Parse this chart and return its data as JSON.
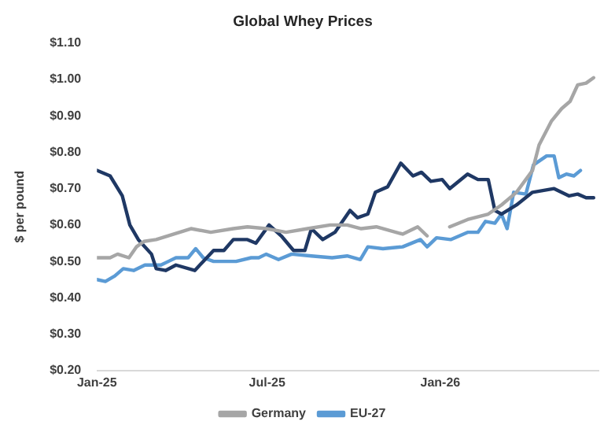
{
  "chart_data": {
    "type": "line",
    "title": "Global Whey Prices",
    "ylabel": "$ per pound",
    "xlim": [
      "2025-01-01",
      "2026-06-19"
    ],
    "xticks": [
      {
        "value": "2025-01",
        "label": "Jan-25"
      },
      {
        "value": "2025-07",
        "label": "Jul-25"
      },
      {
        "value": "2026-01",
        "label": "Jan-26"
      }
    ],
    "ylim": [
      0.2,
      1.1
    ],
    "yticks": [
      {
        "value": 0.2,
        "label": "$0.20"
      },
      {
        "value": 0.3,
        "label": "$0.30"
      },
      {
        "value": 0.4,
        "label": "$0.40"
      },
      {
        "value": 0.5,
        "label": "$0.50"
      },
      {
        "value": 0.6,
        "label": "$0.60"
      },
      {
        "value": 0.7,
        "label": "$0.70"
      },
      {
        "value": 0.8,
        "label": "$0.80"
      },
      {
        "value": 0.9,
        "label": "$0.90"
      },
      {
        "value": 1.0,
        "label": "$1.00"
      },
      {
        "value": 1.1,
        "label": "$1.10"
      }
    ],
    "grid": false,
    "legend": "bottom",
    "marker": "none",
    "line_style": "solid",
    "series": [
      {
        "name": "Germany",
        "color": "#a6a6a6",
        "x": [
          "2025-01-01",
          "2025-01-15",
          "2025-01-23",
          "2025-02-04",
          "2025-02-12",
          "2025-02-20",
          "2025-03-05",
          "2025-04-11",
          "2025-05-02",
          "2025-05-26",
          "2025-06-10",
          "2025-06-30",
          "2025-07-21",
          "2025-08-13",
          "2025-09-06",
          "2025-09-24",
          "2025-10-09",
          "2025-10-25",
          "2025-11-22",
          "2025-12-08",
          "2025-12-18",
          "2025-12-30",
          "2026-01-11",
          "2026-01-30",
          "2026-02-21",
          "2026-03-07",
          "2026-03-23",
          "2026-04-09",
          "2026-04-16",
          "2026-04-29",
          "2026-05-10",
          "2026-05-19",
          "2026-05-27",
          "2026-06-05",
          "2026-06-13"
        ],
        "values": [
          0.51,
          0.51,
          0.52,
          0.51,
          0.54,
          0.555,
          0.56,
          0.59,
          0.58,
          0.59,
          0.595,
          0.59,
          0.58,
          0.59,
          0.6,
          0.6,
          0.59,
          0.595,
          0.575,
          0.595,
          0.57,
          null,
          0.595,
          0.615,
          0.63,
          0.655,
          0.69,
          0.75,
          0.82,
          0.885,
          0.92,
          0.94,
          0.985,
          0.99,
          1.005
        ]
      },
      {
        "color": "#1f3864",
        "x": [
          "2025-01-01",
          "2025-01-15",
          "2025-01-28",
          "2025-02-05",
          "2025-02-14",
          "2025-02-28",
          "2025-03-05",
          "2025-03-15",
          "2025-03-26",
          "2025-04-15",
          "2025-04-24",
          "2025-05-05",
          "2025-05-16",
          "2025-05-26",
          "2025-06-10",
          "2025-06-19",
          "2025-07-03",
          "2025-07-16",
          "2025-07-29",
          "2025-08-10",
          "2025-08-17",
          "2025-08-29",
          "2025-09-11",
          "2025-09-27",
          "2025-10-05",
          "2025-10-16",
          "2025-10-24",
          "2025-11-06",
          "2025-11-20",
          "2025-12-03",
          "2025-12-12",
          "2025-12-22",
          "2026-01-03",
          "2026-01-11",
          "2026-01-30",
          "2026-02-10",
          "2026-02-21",
          "2026-02-28",
          "2026-03-07",
          "2026-03-23",
          "2026-04-09",
          "2026-05-02",
          "2026-05-18",
          "2026-05-27",
          "2026-06-05",
          "2026-06-13"
        ],
        "values": [
          0.75,
          0.735,
          0.68,
          0.6,
          0.56,
          0.52,
          0.48,
          0.475,
          0.49,
          0.475,
          0.5,
          0.53,
          0.53,
          0.56,
          0.56,
          0.55,
          0.6,
          0.57,
          0.53,
          0.53,
          0.59,
          0.56,
          0.58,
          0.64,
          0.62,
          0.63,
          0.69,
          0.705,
          0.77,
          0.735,
          0.745,
          0.72,
          0.725,
          0.7,
          0.74,
          0.725,
          0.725,
          0.64,
          0.63,
          0.655,
          0.69,
          0.7,
          0.68,
          0.685,
          0.675,
          0.675
        ]
      },
      {
        "name": "EU-27",
        "color": "#5b9bd5",
        "x": [
          "2025-01-01",
          "2025-01-10",
          "2025-01-20",
          "2025-01-29",
          "2025-02-09",
          "2025-02-21",
          "2025-03-10",
          "2025-03-18",
          "2025-03-26",
          "2025-04-08",
          "2025-04-16",
          "2025-04-24",
          "2025-05-05",
          "2025-05-29",
          "2025-06-14",
          "2025-06-22",
          "2025-06-30",
          "2025-07-13",
          "2025-07-27",
          "2025-08-17",
          "2025-09-08",
          "2025-09-24",
          "2025-10-08",
          "2025-10-16",
          "2025-11-01",
          "2025-11-22",
          "2025-12-11",
          "2025-12-18",
          "2025-12-28",
          "2026-01-12",
          "2026-01-30",
          "2026-02-10",
          "2026-02-18",
          "2026-02-28",
          "2026-03-07",
          "2026-03-13",
          "2026-03-20",
          "2026-04-02",
          "2026-04-10",
          "2026-04-24",
          "2026-05-02",
          "2026-05-07",
          "2026-05-15",
          "2026-05-23",
          "2026-05-30"
        ],
        "values": [
          0.45,
          0.445,
          0.46,
          0.48,
          0.475,
          0.49,
          0.49,
          0.5,
          0.51,
          0.51,
          0.535,
          0.51,
          0.5,
          0.5,
          0.51,
          0.51,
          0.52,
          0.505,
          0.52,
          0.515,
          0.51,
          0.515,
          0.505,
          0.54,
          0.535,
          0.54,
          0.56,
          0.54,
          0.565,
          0.56,
          0.58,
          0.58,
          0.61,
          0.605,
          0.63,
          0.59,
          0.69,
          0.685,
          0.765,
          0.79,
          0.79,
          0.73,
          0.74,
          0.735,
          0.75
        ]
      }
    ]
  }
}
